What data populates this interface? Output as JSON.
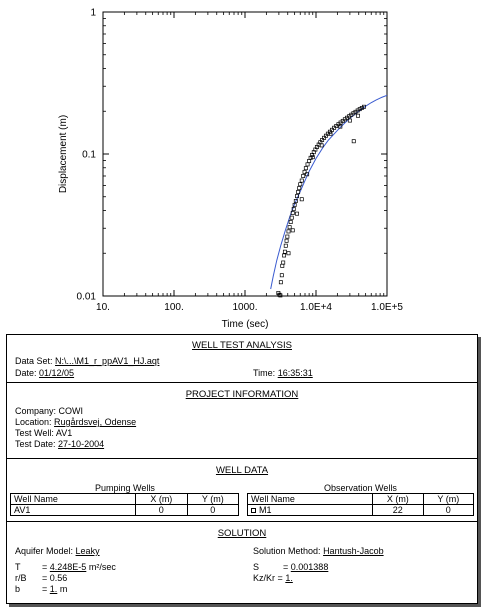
{
  "chart_data": {
    "type": "scatter",
    "xlabel": "Time (sec)",
    "ylabel": "Displacement (m)",
    "x_scale": "log",
    "y_scale": "log",
    "xlim": [
      10,
      100000
    ],
    "ylim": [
      0.01,
      1
    ],
    "x_tick_labels": [
      "10.",
      "100.",
      "1000.",
      "1.0E+4",
      "1.0E+5"
    ],
    "y_tick_labels": [
      "0.01",
      "0.1",
      "1"
    ],
    "grid": false,
    "series": [
      {
        "name": "M1",
        "kind": "observed",
        "marker": "square",
        "points": [
          [
            2950,
            0.0105
          ],
          [
            3050,
            0.0102
          ],
          [
            3150,
            0.0101
          ],
          [
            3200,
            0.0125
          ],
          [
            3300,
            0.014
          ],
          [
            3350,
            0.0163
          ],
          [
            3450,
            0.0172
          ],
          [
            3550,
            0.0193
          ],
          [
            3650,
            0.0205
          ],
          [
            3750,
            0.0226
          ],
          [
            3850,
            0.0245
          ],
          [
            3950,
            0.0262
          ],
          [
            4100,
            0.0285
          ],
          [
            4250,
            0.0305
          ],
          [
            4400,
            0.0332
          ],
          [
            4550,
            0.0356
          ],
          [
            4700,
            0.0384
          ],
          [
            4850,
            0.041
          ],
          [
            5000,
            0.0438
          ],
          [
            5200,
            0.0467
          ],
          [
            5400,
            0.0505
          ],
          [
            5600,
            0.054
          ],
          [
            5800,
            0.0575
          ],
          [
            6000,
            0.0612
          ],
          [
            6300,
            0.065
          ],
          [
            6600,
            0.07
          ],
          [
            6900,
            0.0748
          ],
          [
            7200,
            0.0795
          ],
          [
            7600,
            0.0845
          ],
          [
            8000,
            0.0893
          ],
          [
            8400,
            0.094
          ],
          [
            8800,
            0.0985
          ],
          [
            9300,
            0.103
          ],
          [
            9800,
            0.1075
          ],
          [
            10300,
            0.112
          ],
          [
            10900,
            0.1165
          ],
          [
            11500,
            0.121
          ],
          [
            12200,
            0.1255
          ],
          [
            13000,
            0.13
          ],
          [
            13800,
            0.1345
          ],
          [
            14700,
            0.139
          ],
          [
            15700,
            0.1435
          ],
          [
            16800,
            0.148
          ],
          [
            18000,
            0.153
          ],
          [
            19300,
            0.1575
          ],
          [
            20700,
            0.162
          ],
          [
            22200,
            0.1665
          ],
          [
            23800,
            0.171
          ],
          [
            25500,
            0.1755
          ],
          [
            27300,
            0.18
          ],
          [
            29300,
            0.1845
          ],
          [
            31400,
            0.189
          ],
          [
            33600,
            0.1935
          ],
          [
            36000,
            0.198
          ],
          [
            38600,
            0.2025
          ],
          [
            41300,
            0.207
          ],
          [
            44200,
            0.211
          ],
          [
            47300,
            0.215
          ],
          [
            4100,
            0.02
          ],
          [
            4700,
            0.029
          ],
          [
            5400,
            0.038
          ],
          [
            6300,
            0.048
          ],
          [
            7500,
            0.072
          ],
          [
            9000,
            0.095
          ],
          [
            12000,
            0.115
          ],
          [
            16000,
            0.139
          ],
          [
            22000,
            0.156
          ],
          [
            30000,
            0.172
          ],
          [
            39000,
            0.186
          ],
          [
            34000,
            0.123
          ]
        ]
      },
      {
        "name": "Hantush-Jacob fit",
        "kind": "curve",
        "points": [
          [
            2300,
            0.0112
          ],
          [
            2500,
            0.0138
          ],
          [
            2800,
            0.0178
          ],
          [
            3200,
            0.0228
          ],
          [
            3700,
            0.029
          ],
          [
            4300,
            0.0365
          ],
          [
            5000,
            0.0445
          ],
          [
            6000,
            0.0545
          ],
          [
            7000,
            0.065
          ],
          [
            8000,
            0.0755
          ],
          [
            10000,
            0.093
          ],
          [
            12500,
            0.111
          ],
          [
            15000,
            0.1255
          ],
          [
            20000,
            0.1465
          ],
          [
            25000,
            0.164
          ],
          [
            30000,
            0.1785
          ],
          [
            40000,
            0.2
          ],
          [
            50000,
            0.217
          ],
          [
            60000,
            0.23
          ],
          [
            70000,
            0.24
          ],
          [
            85000,
            0.251
          ],
          [
            100000,
            0.259
          ]
        ]
      }
    ]
  },
  "report": {
    "wta": {
      "title": "WELL TEST ANALYSIS",
      "data_set_label": "Data Set:",
      "data_set_value": "N:\\...\\M1_r_ppAV1_HJ.aqt",
      "date_label": "Date:",
      "date_value": "01/12/05",
      "time_label": "Time:",
      "time_value": "16:35:31"
    },
    "project": {
      "title": "PROJECT INFORMATION",
      "company_label": "Company:",
      "company_value": "COWI",
      "location_label": "Location:",
      "location_value": "Rugårdsvej, Odense",
      "test_well_label": "Test Well:",
      "test_well_value": "AV1",
      "test_date_label": "Test Date:",
      "test_date_value": "27-10-2004"
    },
    "well_data": {
      "title": "WELL DATA",
      "pumping_heading": "Pumping Wells",
      "observation_heading": "Observation Wells",
      "col_well_name": "Well Name",
      "col_x": "X (m)",
      "col_y": "Y (m)",
      "pumping_rows": [
        {
          "name": "AV1",
          "x": "0",
          "y": "0"
        }
      ],
      "observation_rows": [
        {
          "name": "M1",
          "x": "22",
          "y": "0"
        }
      ]
    },
    "solution": {
      "title": "SOLUTION",
      "aquifer_model_label": "Aquifer Model:",
      "aquifer_model_value": "Leaky",
      "solution_method_label": "Solution Method:",
      "solution_method_value": "Hantush-Jacob",
      "t_label": "T",
      "t_value": "4.248E-5",
      "t_unit": "m²/sec",
      "s_label": "S",
      "s_value": "0.001388",
      "rb_label": "r/B",
      "rb_value": "0.56",
      "kzkr_label": "Kz/Kr",
      "kzkr_value": "1.",
      "b_label": "b",
      "b_value": "1.",
      "b_unit": "m",
      "eq": "="
    }
  }
}
